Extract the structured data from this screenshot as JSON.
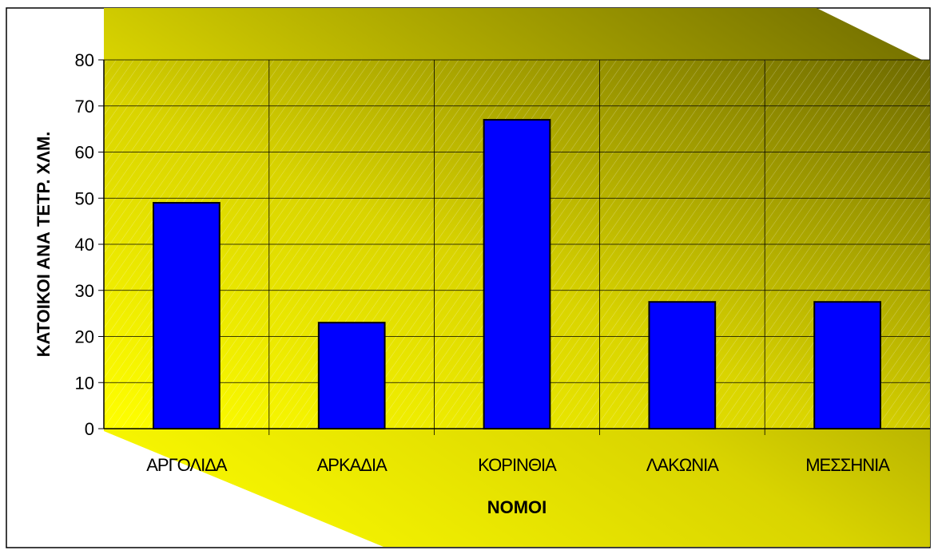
{
  "colors": {
    "bar_fill": "#0000ff",
    "plot_light": "#e8e800",
    "plot_dark": "#7a7400",
    "grid": "#000000"
  },
  "chart_data": {
    "type": "bar",
    "categories": [
      "ΑΡΓΟΛΙΔΑ",
      "ΑΡΚΑΔΙΑ",
      "ΚΟΡΙΝΘΙΑ",
      "ΛΑΚΩΝΙΑ",
      "ΜΕΣΣΗΝΙΑ"
    ],
    "values": [
      49,
      23,
      67,
      27.5,
      27.5
    ],
    "xlabel": "ΝΟΜΟΙ",
    "ylabel": "ΚΑΤΟΙΚΟΙ ΑΝΑ ΤΕΤΡ. ΧΛΜ.",
    "ylim": [
      0,
      80
    ],
    "yticks": [
      0,
      10,
      20,
      30,
      40,
      50,
      60,
      70,
      80
    ],
    "grid": true,
    "legend": "none"
  }
}
